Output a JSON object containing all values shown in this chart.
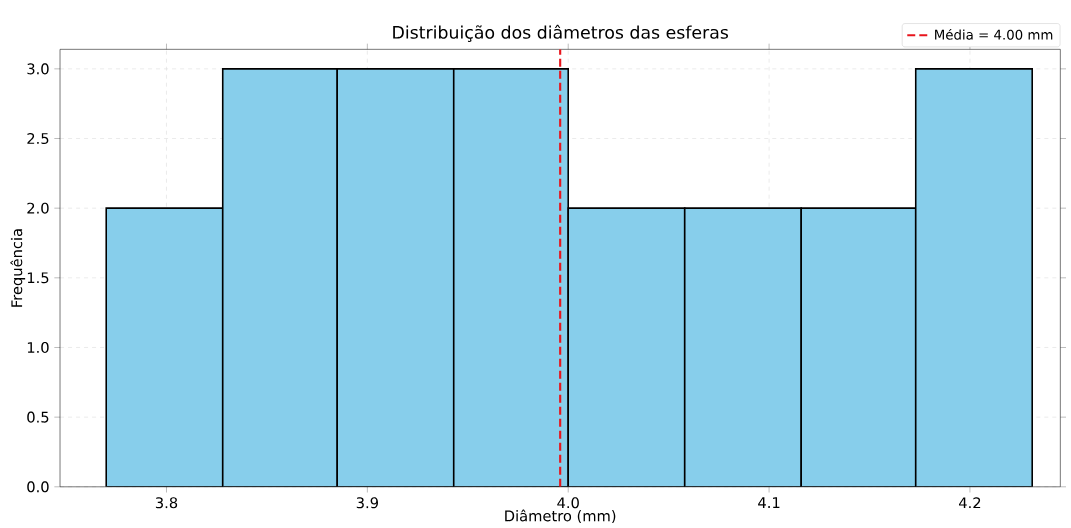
{
  "chart_data": {
    "type": "histogram",
    "title": "Distribuição dos diâmetros das esferas",
    "xlabel": "Diâmetro (mm)",
    "ylabel": "Frequência",
    "bins": [
      3.77,
      3.828,
      3.885,
      3.943,
      4.0,
      4.058,
      4.116,
      4.173,
      4.231
    ],
    "values": [
      2,
      3,
      3,
      3,
      2,
      2,
      2,
      3
    ],
    "color": "#87ceeb",
    "xlim": [
      3.747,
      4.245
    ],
    "ylim": [
      0,
      3.14
    ],
    "xticks": [
      {
        "value": 3.8,
        "label": "3.8"
      },
      {
        "value": 3.9,
        "label": "3.9"
      },
      {
        "value": 4.0,
        "label": "4.0"
      },
      {
        "value": 4.1,
        "label": "4.1"
      },
      {
        "value": 4.2,
        "label": "4.2"
      }
    ],
    "yticks": [
      {
        "value": 0,
        "label": "0.0"
      },
      {
        "value": 0.5,
        "label": "0.5"
      },
      {
        "value": 1.0,
        "label": "1.0"
      },
      {
        "value": 1.5,
        "label": "1.5"
      },
      {
        "value": 2.0,
        "label": "2.0"
      },
      {
        "value": 2.5,
        "label": "2.5"
      },
      {
        "value": 3.0,
        "label": "3.0"
      }
    ],
    "ref_lines": [
      {
        "axis": "x",
        "value": 3.996,
        "label": "Média = 4.00 mm",
        "color": "#e8141c",
        "line_style": "dashed"
      }
    ],
    "grid": true,
    "legend": "top right"
  }
}
